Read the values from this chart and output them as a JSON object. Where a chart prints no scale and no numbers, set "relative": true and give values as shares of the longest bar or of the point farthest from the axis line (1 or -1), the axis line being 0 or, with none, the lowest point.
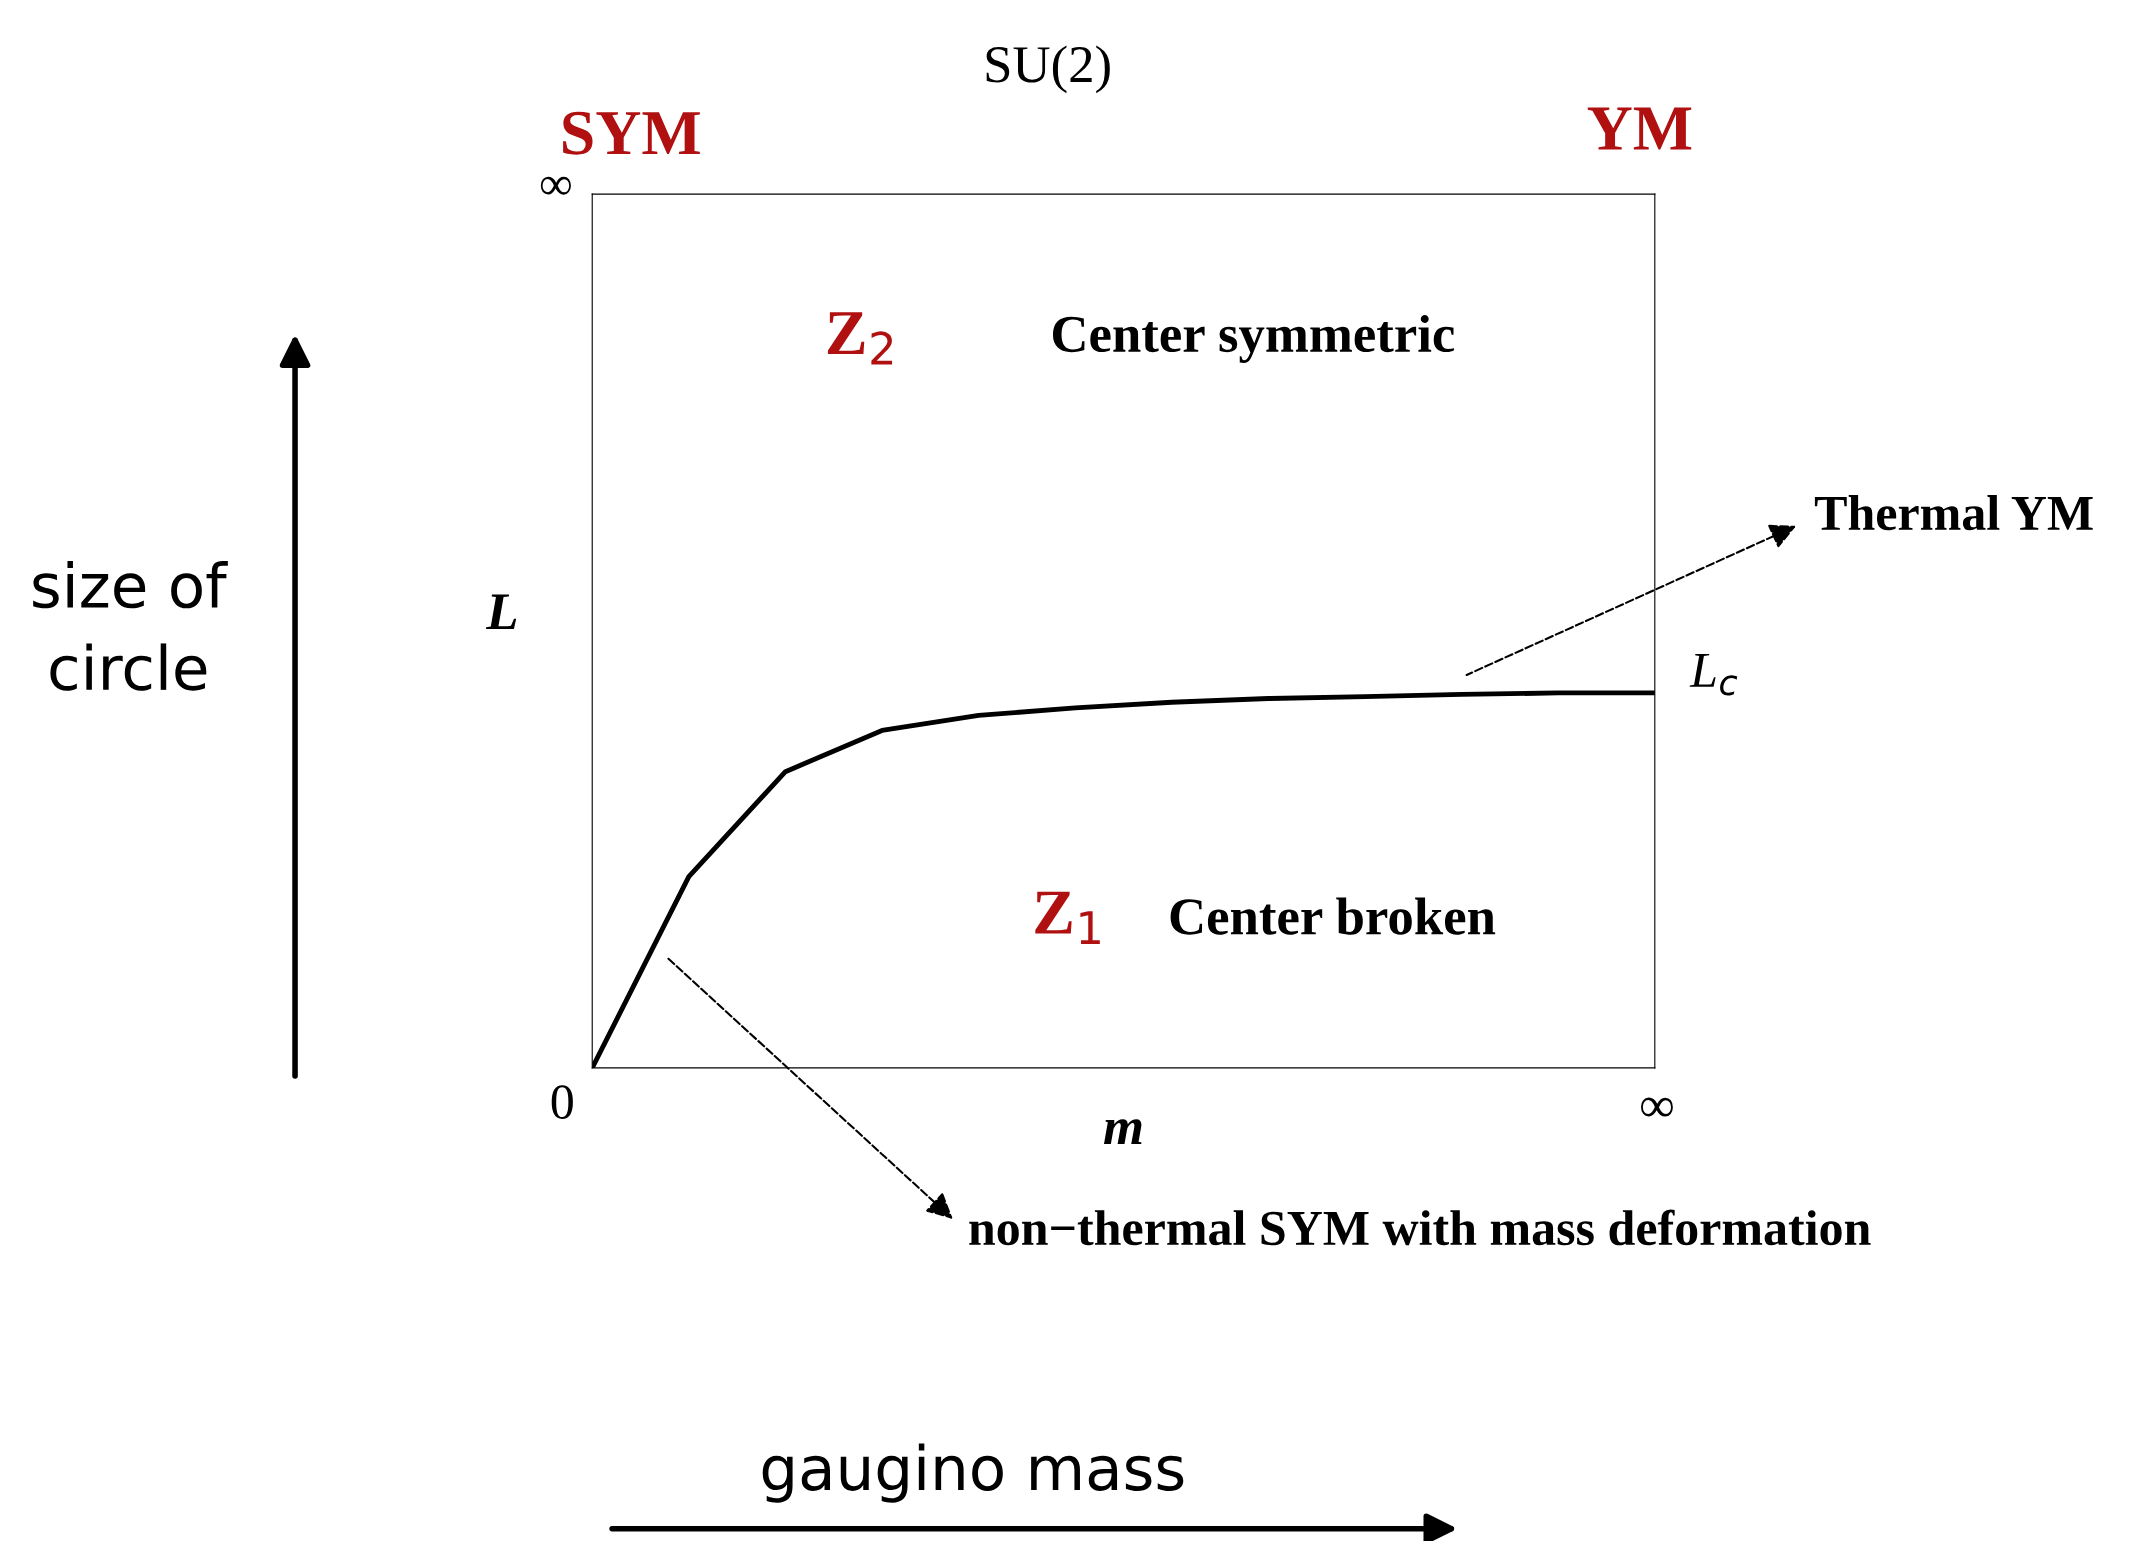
{
  "chart_data": {
    "type": "line",
    "relative": true,
    "title": "SU(2)",
    "xlabel": "m",
    "ylabel": "L",
    "categories": [
      null,
      null,
      null,
      null,
      null,
      null,
      null,
      null,
      null,
      null,
      null,
      null
    ],
    "series": [
      {
        "color": "#000000",
        "values": [
          0,
          0.51,
          0.79,
          0.9,
          0.94,
          0.96,
          0.975,
          0.985,
          0.99,
          0.996,
          1,
          1
        ]
      }
    ],
    "grid": false,
    "legend": false,
    "marker": "none",
    "line_style": "solid",
    "annotations": [
      "∞",
      "SYM",
      "YM",
      "Z$_{2}$",
      "Center symmetric",
      "Z$_{1}$",
      "Center broken",
      "L$_{c}$",
      "Thermal YM",
      "non−thermal SYM with mass deformation",
      "size of circle",
      "gaugino mass",
      "0",
      "∞"
    ]
  }
}
